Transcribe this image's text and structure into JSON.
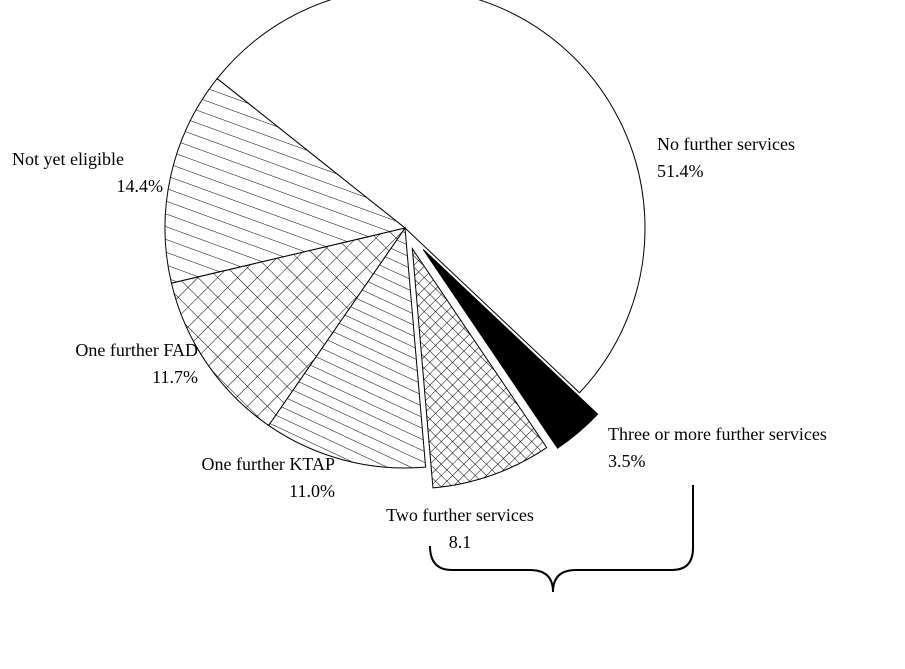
{
  "chart_data": {
    "type": "pie",
    "categories": [
      "No further services",
      "Three or more further services",
      "Two further services",
      "One further KTAP",
      "One further FAD",
      "Not yet eligible"
    ],
    "values": [
      51.4,
      3.5,
      8.1,
      11.0,
      11.7,
      14.4
    ],
    "value_labels": [
      "51.4%",
      "3.5%",
      "8.1",
      "11.0%",
      "11.7%",
      "14.4%"
    ],
    "colors": [
      "#ffffff",
      "#000000",
      "#000000",
      "#000000",
      "#000000",
      "#000000"
    ]
  }
}
